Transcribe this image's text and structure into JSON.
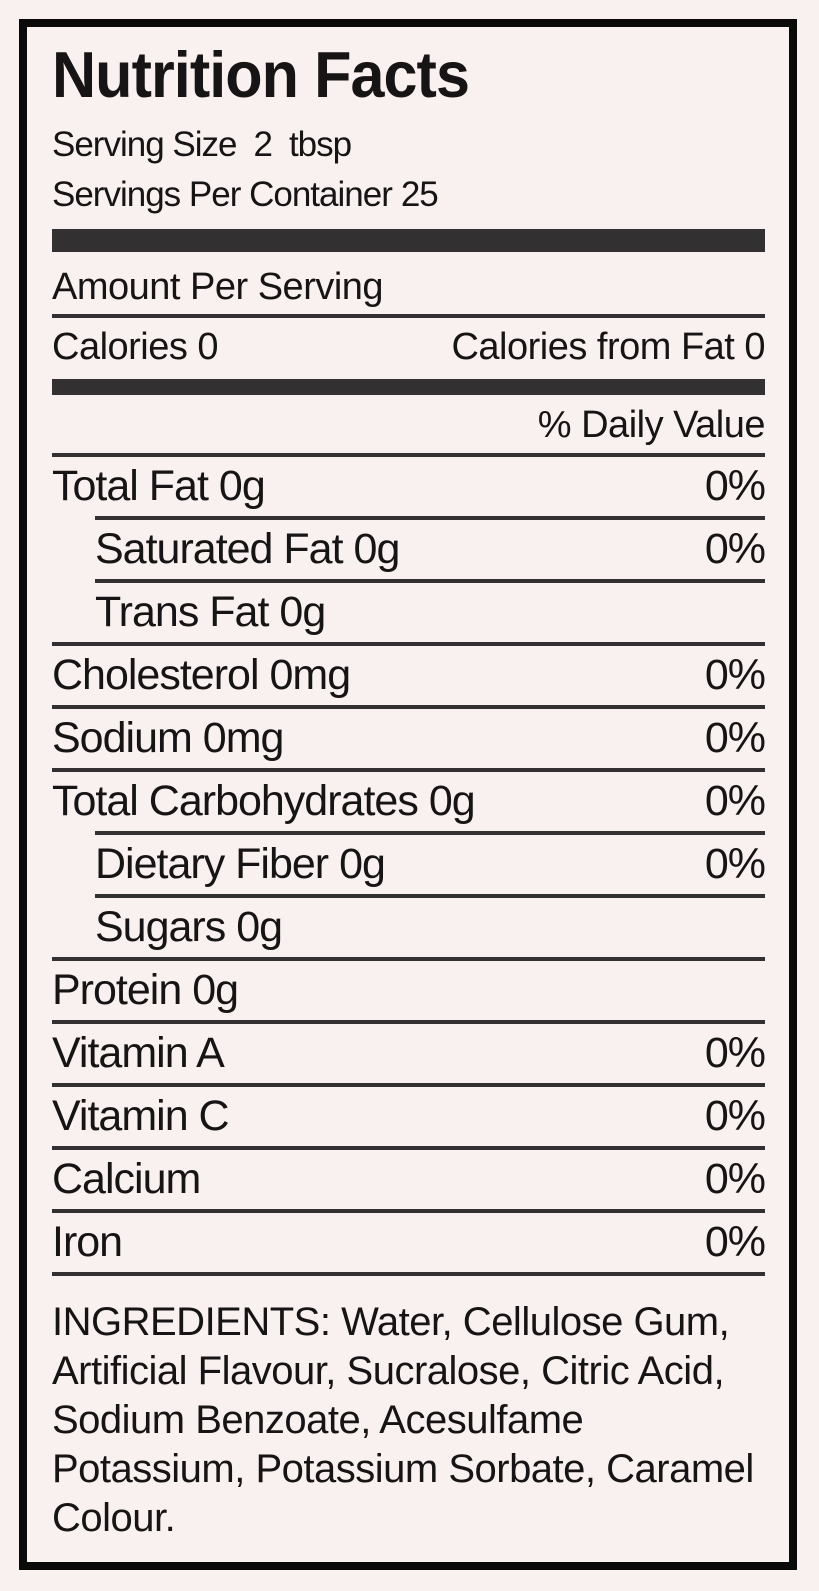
{
  "label": {
    "title": "Nutrition Facts",
    "serving": {
      "label": "Serving Size",
      "value": "2",
      "unit": "tbsp"
    },
    "servings_per_container": {
      "label": "Servings Per Container",
      "value": "25"
    },
    "amount_per_serving": "Amount Per Serving",
    "calories": {
      "label": "Calories",
      "value": "0"
    },
    "calories_from_fat": {
      "label": "Calories from Fat",
      "value": "0"
    },
    "daily_value_header": "% Daily Value",
    "rows": [
      {
        "name": "Total Fat",
        "amount": "0g",
        "dv": "0%",
        "indent": false,
        "rule_below": "indent"
      },
      {
        "name": "Saturated Fat",
        "amount": "0g",
        "dv": "0%",
        "indent": true,
        "rule_below": "indent"
      },
      {
        "name": "Trans Fat",
        "amount": "0g",
        "dv": "",
        "indent": true,
        "rule_below": "full"
      },
      {
        "name": "Cholesterol",
        "amount": "0mg",
        "dv": "0%",
        "indent": false,
        "rule_below": "full"
      },
      {
        "name": "Sodium",
        "amount": "0mg",
        "dv": "0%",
        "indent": false,
        "rule_below": "full"
      },
      {
        "name": "Total Carbohydrates",
        "amount": "0g",
        "dv": "0%",
        "indent": false,
        "rule_below": "indent"
      },
      {
        "name": "Dietary Fiber",
        "amount": "0g",
        "dv": "0%",
        "indent": true,
        "rule_below": "indent"
      },
      {
        "name": "Sugars",
        "amount": "0g",
        "dv": "",
        "indent": true,
        "rule_below": "full"
      },
      {
        "name": "Protein",
        "amount": "0g",
        "dv": "",
        "indent": false,
        "rule_below": "full"
      },
      {
        "name": "Vitamin A",
        "amount": "",
        "dv": "0%",
        "indent": false,
        "rule_below": "full"
      },
      {
        "name": "Vitamin C",
        "amount": "",
        "dv": "0%",
        "indent": false,
        "rule_below": "full"
      },
      {
        "name": "Calcium",
        "amount": "",
        "dv": "0%",
        "indent": false,
        "rule_below": "full"
      },
      {
        "name": "Iron",
        "amount": "",
        "dv": "0%",
        "indent": false,
        "rule_below": "full"
      }
    ],
    "ingredients": "INGREDIENTS: Water, Cellulose Gum, Artificial Flavour, Sucralose, Citric Acid, Sodium Benzoate, Acesulfame Potassium, Potassium Sorbate, Caramel Colour."
  },
  "colors": {
    "background": "#f9f1ef",
    "bar": "#323031",
    "rule": "#323031",
    "text": "#171415",
    "border": "#0b0a0a"
  }
}
